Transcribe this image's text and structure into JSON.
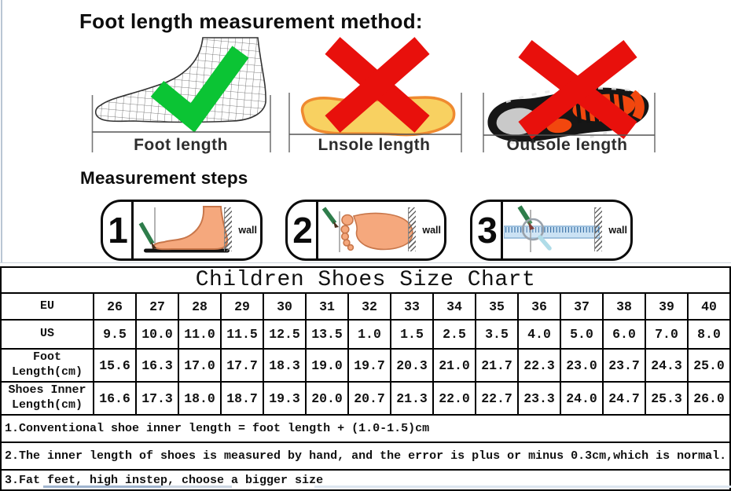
{
  "method_section": {
    "heading": "Foot length measurement method:",
    "figures": [
      {
        "label": "Foot length",
        "mark": "check-icon",
        "image": "wireframe-foot"
      },
      {
        "label": "Lnsole length",
        "mark": "cross-icon",
        "image": "insole"
      },
      {
        "label": "Outsole length",
        "mark": "cross-icon",
        "image": "shoe-outsole"
      }
    ]
  },
  "steps_section": {
    "heading": "Measurement steps",
    "steps": [
      {
        "number": "1",
        "wall_label": "wall"
      },
      {
        "number": "2",
        "wall_label": "wall"
      },
      {
        "number": "3",
        "wall_label": "wall"
      }
    ]
  },
  "size_chart": {
    "title": "Children Shoes Size Chart",
    "rows": [
      {
        "key": "eu",
        "header_lines": [
          "EU"
        ],
        "values": [
          "26",
          "27",
          "28",
          "29",
          "30",
          "31",
          "32",
          "33",
          "34",
          "35",
          "36",
          "37",
          "38",
          "39",
          "40"
        ]
      },
      {
        "key": "us",
        "header_lines": [
          "US"
        ],
        "values": [
          "9.5",
          "10.0",
          "11.0",
          "11.5",
          "12.5",
          "13.5",
          "1.0",
          "1.5",
          "2.5",
          "3.5",
          "4.0",
          "5.0",
          "6.0",
          "7.0",
          "8.0"
        ]
      },
      {
        "key": "foot",
        "header_lines": [
          "Foot",
          "Length(cm)"
        ],
        "values": [
          "15.6",
          "16.3",
          "17.0",
          "17.7",
          "18.3",
          "19.0",
          "19.7",
          "20.3",
          "21.0",
          "21.7",
          "22.3",
          "23.0",
          "23.7",
          "24.3",
          "25.0"
        ]
      },
      {
        "key": "inner",
        "header_lines": [
          "Shoes Inner",
          "Length(cm)"
        ],
        "values": [
          "16.6",
          "17.3",
          "18.0",
          "18.7",
          "19.3",
          "20.0",
          "20.7",
          "21.3",
          "22.0",
          "22.7",
          "23.3",
          "24.0",
          "24.7",
          "25.3",
          "26.0"
        ]
      }
    ]
  },
  "notes": [
    "1.Conventional shoe inner length = foot length + (1.0-1.5)cm",
    "2.The inner length of shoes is measured by hand, and the error is plus or minus 0.3cm,which is normal.",
    "3.Fat feet, high instep, choose a bigger size"
  ],
  "colors": {
    "check_green": "#0BC434",
    "cross_red": "#E8100C",
    "insole_yellow": "#F8D161",
    "insole_border": "#EF8A30",
    "skin": "#F5A87D",
    "outsole_orange": "#F2470E"
  }
}
